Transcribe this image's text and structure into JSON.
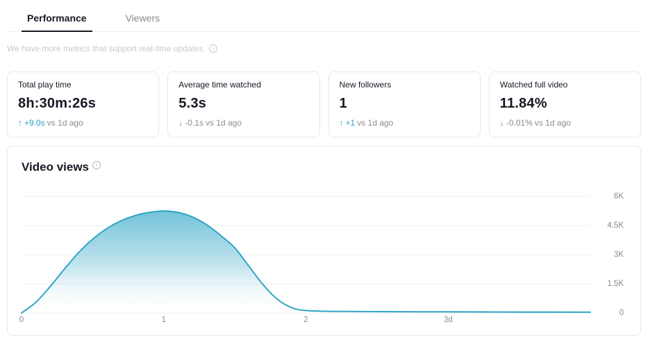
{
  "tabs": [
    {
      "label": "Performance",
      "active": true
    },
    {
      "label": "Viewers",
      "active": false
    }
  ],
  "notice": {
    "text": "We have more metrics that support real-time updates."
  },
  "icons": {
    "info": "i",
    "up_arrow": "↑",
    "down_arrow": "↓"
  },
  "metrics": [
    {
      "title": "Total play time",
      "value": "8h:30m:26s",
      "delta": {
        "trend": "up",
        "arrow": "↑",
        "value": "+9.0s",
        "suffix": "vs 1d ago"
      }
    },
    {
      "title": "Average time watched",
      "value": "5.3s",
      "delta": {
        "trend": "down",
        "arrow": "↓",
        "value": "-0.1s",
        "suffix": "vs 1d ago"
      }
    },
    {
      "title": "New followers",
      "value": "1",
      "delta": {
        "trend": "up",
        "arrow": "↑",
        "value": "+1",
        "suffix": "vs 1d ago"
      }
    },
    {
      "title": "Watched full video",
      "value": "11.84%",
      "delta": {
        "trend": "down",
        "arrow": "↓",
        "value": "-0.01%",
        "suffix": "vs 1d ago"
      }
    }
  ],
  "chart_data": {
    "type": "area",
    "title": "Video views",
    "xlabel": "",
    "ylabel": "",
    "xlim": [
      0,
      4
    ],
    "ylim": [
      0,
      6000
    ],
    "grid": true,
    "legend": "none",
    "y_axis_position": "right",
    "x_ticks": [
      "0",
      "1",
      "2",
      "3d"
    ],
    "x_tick_values": [
      0,
      1,
      2,
      3
    ],
    "y_ticks": [
      "0",
      "1.5K",
      "3K",
      "4.5K",
      "6K"
    ],
    "y_tick_values": [
      0,
      1500,
      3000,
      4500,
      6000
    ],
    "x": [
      0,
      0.1,
      0.2,
      0.3,
      0.4,
      0.5,
      0.6,
      0.7,
      0.8,
      0.9,
      1.0,
      1.1,
      1.2,
      1.3,
      1.4,
      1.5,
      1.6,
      1.7,
      1.8,
      1.9,
      2.0,
      2.2,
      2.5,
      3.0,
      3.5,
      4.0
    ],
    "values": [
      0,
      550,
      1350,
      2250,
      3100,
      3800,
      4350,
      4750,
      5020,
      5180,
      5250,
      5180,
      4950,
      4550,
      4000,
      3350,
      2400,
      1450,
      700,
      280,
      130,
      85,
      70,
      60,
      50,
      45
    ],
    "line_color": "#2da4c4",
    "fill_top": "#6cc0d8"
  },
  "colors": {
    "accent_teal": "#2da4c4",
    "text_primary": "#161823",
    "text_secondary": "#8a8b91",
    "text_faint": "#c8c9cd",
    "border": "#e6e7eb",
    "grid": "#ededf0"
  }
}
